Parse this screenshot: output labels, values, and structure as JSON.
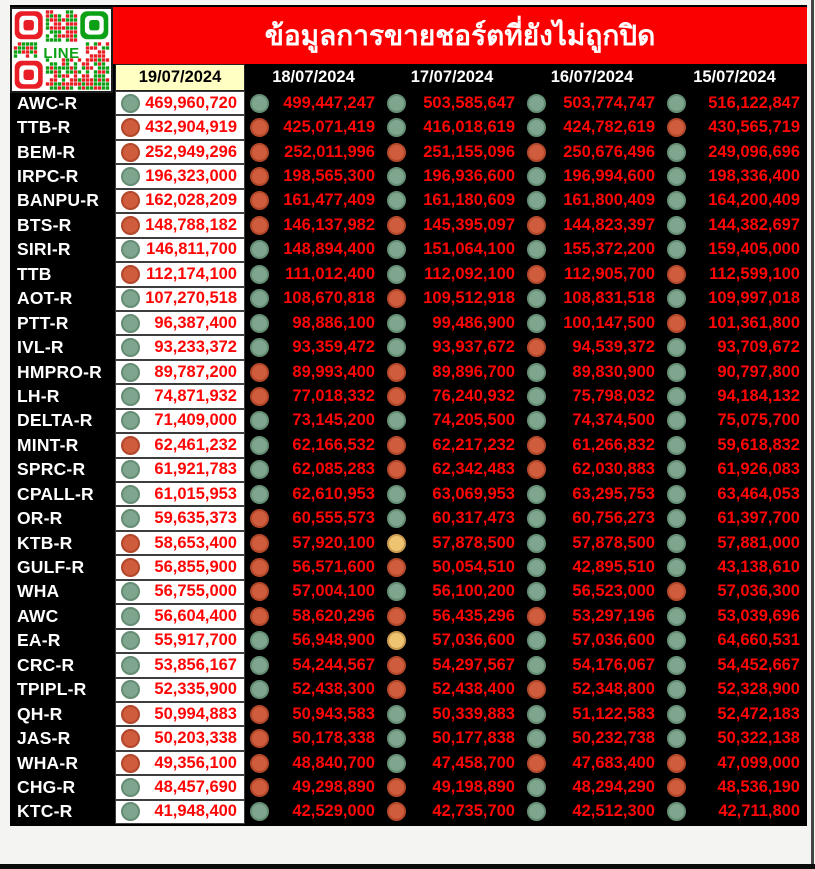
{
  "header": {
    "title": "ข้อมูลการขายชอร์ตที่ยังไม่ถูกปิด",
    "qr_label": "LINE"
  },
  "palette": {
    "banner_red": "#fb0000",
    "number_red": "#ff0606",
    "highlight_yellow": "#ffffc4",
    "dot_green": "#7fa58f",
    "dot_green_border": "#648d74",
    "dot_red": "#cf5c3c",
    "dot_red_border": "#b2472a",
    "dot_yellow": "#eec471",
    "dot_yellow_border": "#cb9c50",
    "qr_red": "#e81d25",
    "qr_green": "#0ca015"
  },
  "chart_data": {
    "type": "table",
    "title": "ข้อมูลการขายชอร์ตที่ยังไม่ถูกปิด",
    "columns": [
      "19/07/2024",
      "18/07/2024",
      "17/07/2024",
      "16/07/2024",
      "15/07/2024"
    ],
    "dot_colors_used": [
      "green",
      "red",
      "yellow"
    ],
    "rows": [
      {
        "ticker": "AWC-R",
        "values": [
          469960720,
          499447247,
          503585647,
          503774747,
          516122847
        ],
        "dots": [
          "green",
          "green",
          "green",
          "green",
          "green"
        ]
      },
      {
        "ticker": "TTB-R",
        "values": [
          432904919,
          425071419,
          416018619,
          424782619,
          430565719
        ],
        "dots": [
          "red",
          "red",
          "green",
          "green",
          "red"
        ]
      },
      {
        "ticker": "BEM-R",
        "values": [
          252949296,
          252011996,
          251155096,
          250676496,
          249096696
        ],
        "dots": [
          "red",
          "red",
          "red",
          "red",
          "green"
        ]
      },
      {
        "ticker": "IRPC-R",
        "values": [
          196323000,
          198565300,
          196936600,
          196994600,
          198336400
        ],
        "dots": [
          "green",
          "red",
          "green",
          "green",
          "green"
        ]
      },
      {
        "ticker": "BANPU-R",
        "values": [
          162028209,
          161477409,
          161180609,
          161800409,
          164200409
        ],
        "dots": [
          "red",
          "red",
          "green",
          "green",
          "green"
        ]
      },
      {
        "ticker": "BTS-R",
        "values": [
          148788182,
          146137982,
          145395097,
          144823397,
          144382697
        ],
        "dots": [
          "red",
          "red",
          "red",
          "red",
          "green"
        ]
      },
      {
        "ticker": "SIRI-R",
        "values": [
          146811700,
          148894400,
          151064100,
          155372200,
          159405000
        ],
        "dots": [
          "green",
          "green",
          "green",
          "green",
          "green"
        ]
      },
      {
        "ticker": "TTB",
        "values": [
          112174100,
          111012400,
          112092100,
          112905700,
          112599100
        ],
        "dots": [
          "red",
          "green",
          "green",
          "red",
          "red"
        ]
      },
      {
        "ticker": "AOT-R",
        "values": [
          107270518,
          108670818,
          109512918,
          108831518,
          109997018
        ],
        "dots": [
          "green",
          "green",
          "red",
          "green",
          "green"
        ]
      },
      {
        "ticker": "PTT-R",
        "values": [
          96387400,
          98886100,
          99486900,
          100147500,
          101361800
        ],
        "dots": [
          "green",
          "green",
          "green",
          "green",
          "red"
        ]
      },
      {
        "ticker": "IVL-R",
        "values": [
          93233372,
          93359472,
          93937672,
          94539372,
          93709672
        ],
        "dots": [
          "green",
          "green",
          "green",
          "red",
          "green"
        ]
      },
      {
        "ticker": "HMPRO-R",
        "values": [
          89787200,
          89993400,
          89896700,
          89830900,
          90797800
        ],
        "dots": [
          "green",
          "red",
          "red",
          "green",
          "green"
        ]
      },
      {
        "ticker": "LH-R",
        "values": [
          74871932,
          77018332,
          76240932,
          75798032,
          94184132
        ],
        "dots": [
          "green",
          "red",
          "red",
          "green",
          "green"
        ]
      },
      {
        "ticker": "DELTA-R",
        "values": [
          71409000,
          73145200,
          74205500,
          74374500,
          75075700
        ],
        "dots": [
          "green",
          "green",
          "green",
          "green",
          "green"
        ]
      },
      {
        "ticker": "MINT-R",
        "values": [
          62461232,
          62166532,
          62217232,
          61266832,
          59618832
        ],
        "dots": [
          "red",
          "green",
          "red",
          "red",
          "green"
        ]
      },
      {
        "ticker": "SPRC-R",
        "values": [
          61921783,
          62085283,
          62342483,
          62030883,
          61926083
        ],
        "dots": [
          "green",
          "green",
          "red",
          "red",
          "green"
        ]
      },
      {
        "ticker": "CPALL-R",
        "values": [
          61015953,
          62610953,
          63069953,
          63295753,
          63464053
        ],
        "dots": [
          "green",
          "green",
          "green",
          "green",
          "green"
        ]
      },
      {
        "ticker": "OR-R",
        "values": [
          59635373,
          60555573,
          60317473,
          60756273,
          61397700
        ],
        "dots": [
          "green",
          "red",
          "green",
          "green",
          "green"
        ]
      },
      {
        "ticker": "KTB-R",
        "values": [
          58653400,
          57920100,
          57878500,
          57878500,
          57881000
        ],
        "dots": [
          "red",
          "red",
          "yellow",
          "green",
          "green"
        ]
      },
      {
        "ticker": "GULF-R",
        "values": [
          56855900,
          56571600,
          50054510,
          42895510,
          43138610
        ],
        "dots": [
          "red",
          "red",
          "red",
          "green",
          "green"
        ]
      },
      {
        "ticker": "WHA",
        "values": [
          56755000,
          57004100,
          56100200,
          56523000,
          57036300
        ],
        "dots": [
          "green",
          "red",
          "green",
          "green",
          "red"
        ]
      },
      {
        "ticker": "AWC",
        "values": [
          56604400,
          58620296,
          56435296,
          53297196,
          53039696
        ],
        "dots": [
          "green",
          "red",
          "red",
          "red",
          "green"
        ]
      },
      {
        "ticker": "EA-R",
        "values": [
          55917700,
          56948900,
          57036600,
          57036600,
          64660531
        ],
        "dots": [
          "green",
          "green",
          "yellow",
          "green",
          "green"
        ]
      },
      {
        "ticker": "CRC-R",
        "values": [
          53856167,
          54244567,
          54297567,
          54176067,
          54452667
        ],
        "dots": [
          "green",
          "green",
          "red",
          "green",
          "green"
        ]
      },
      {
        "ticker": "TPIPL-R",
        "values": [
          52335900,
          52438300,
          52438400,
          52348800,
          52328900
        ],
        "dots": [
          "green",
          "green",
          "red",
          "red",
          "green"
        ]
      },
      {
        "ticker": "QH-R",
        "values": [
          50994883,
          50943583,
          50339883,
          51122583,
          52472183
        ],
        "dots": [
          "red",
          "red",
          "green",
          "green",
          "green"
        ]
      },
      {
        "ticker": "JAS-R",
        "values": [
          50203338,
          50178338,
          50177838,
          50232738,
          50322138
        ],
        "dots": [
          "red",
          "red",
          "green",
          "green",
          "green"
        ]
      },
      {
        "ticker": "WHA-R",
        "values": [
          49356100,
          48840700,
          47458700,
          47683400,
          47099000
        ],
        "dots": [
          "red",
          "red",
          "green",
          "red",
          "red"
        ]
      },
      {
        "ticker": "CHG-R",
        "values": [
          48457690,
          49298890,
          49198890,
          48294290,
          48536190
        ],
        "dots": [
          "green",
          "red",
          "red",
          "green",
          "red"
        ]
      },
      {
        "ticker": "KTC-R",
        "values": [
          41948400,
          42529000,
          42735700,
          42512300,
          42711800
        ],
        "dots": [
          "green",
          "green",
          "red",
          "green",
          "green"
        ]
      }
    ]
  }
}
